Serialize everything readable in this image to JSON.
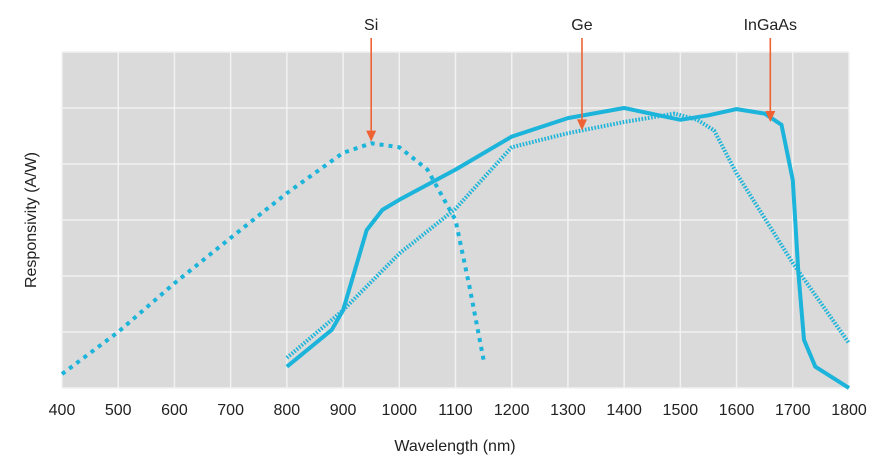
{
  "chart_data": {
    "type": "line",
    "title": "",
    "xlabel": "Wavelength (nm)",
    "ylabel": "Responsivity (A/W)",
    "xlim": [
      400,
      1800
    ],
    "ylim": [
      0,
      6
    ],
    "x_ticks": [
      400,
      500,
      600,
      700,
      800,
      900,
      1000,
      1100,
      1200,
      1300,
      1400,
      1500,
      1600,
      1700,
      1800
    ],
    "y_tick_labels_shown": false,
    "grid": true,
    "background": "#d9dad9",
    "series": [
      {
        "name": "Si",
        "style": "dotted",
        "color": "#1cb4da",
        "points": [
          [
            400,
            0.25
          ],
          [
            500,
            1.0
          ],
          [
            600,
            1.87
          ],
          [
            700,
            2.68
          ],
          [
            800,
            3.48
          ],
          [
            900,
            4.2
          ],
          [
            950,
            4.37
          ],
          [
            1000,
            4.3
          ],
          [
            1050,
            3.9
          ],
          [
            1100,
            3.0
          ],
          [
            1125,
            1.8
          ],
          [
            1150,
            0.5
          ]
        ]
      },
      {
        "name": "Ge",
        "style": "fine-dotted",
        "color": "#1cb4da",
        "points": [
          [
            800,
            0.54
          ],
          [
            900,
            1.39
          ],
          [
            1000,
            2.4
          ],
          [
            1100,
            3.2
          ],
          [
            1200,
            4.3
          ],
          [
            1300,
            4.55
          ],
          [
            1400,
            4.75
          ],
          [
            1490,
            4.9
          ],
          [
            1530,
            4.79
          ],
          [
            1560,
            4.6
          ],
          [
            1600,
            3.83
          ],
          [
            1700,
            2.23
          ],
          [
            1800,
            0.8
          ]
        ]
      },
      {
        "name": "InGaAs",
        "style": "solid",
        "color": "#1cb4da",
        "points": [
          [
            800,
            0.38
          ],
          [
            880,
            1.04
          ],
          [
            900,
            1.39
          ],
          [
            942,
            2.82
          ],
          [
            970,
            3.18
          ],
          [
            1000,
            3.36
          ],
          [
            1100,
            3.9
          ],
          [
            1200,
            4.49
          ],
          [
            1300,
            4.82
          ],
          [
            1400,
            5.0
          ],
          [
            1500,
            4.79
          ],
          [
            1550,
            4.87
          ],
          [
            1600,
            4.98
          ],
          [
            1650,
            4.9
          ],
          [
            1680,
            4.7
          ],
          [
            1700,
            3.71
          ],
          [
            1710,
            2.05
          ],
          [
            1720,
            0.86
          ],
          [
            1740,
            0.38
          ],
          [
            1800,
            0.0
          ]
        ]
      }
    ],
    "annotations": [
      {
        "text": "Si",
        "x": 950,
        "y": 4.4,
        "arrow_color": "#ef6234"
      },
      {
        "text": "Ge",
        "x": 1325,
        "y": 4.6,
        "arrow_color": "#ef6234"
      },
      {
        "text": "InGaAs",
        "x": 1660,
        "y": 4.75,
        "arrow_color": "#ef6234"
      }
    ]
  }
}
